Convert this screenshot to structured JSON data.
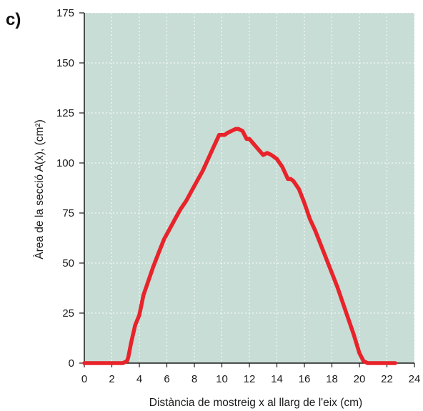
{
  "panel_label": "c)",
  "colors": {
    "plot_background": "#c7ddd5",
    "grid": "#ffffff",
    "axis": "#1a1a1a",
    "series": "#e8232a"
  },
  "chart_data": {
    "type": "line",
    "title": "",
    "xlabel": "Distància de mostreig x al llarg de l'eix (cm)",
    "ylabel": "Àrea de la secció A(x), (cm²)",
    "xlim": [
      0,
      24
    ],
    "ylim": [
      0,
      175
    ],
    "xticks": [
      "0",
      "2",
      "4",
      "6",
      "8",
      "10",
      "12",
      "14",
      "16",
      "18",
      "20",
      "22",
      "24"
    ],
    "yticks": [
      "0",
      "25",
      "50",
      "75",
      "100",
      "125",
      "150",
      "175"
    ],
    "grid": true,
    "grid_style": "dotted",
    "series": [
      {
        "x": [
          0,
          1,
          2,
          2.8,
          3.1,
          3.2,
          3.4,
          3.7,
          4.0,
          4.3,
          4.6,
          5.0,
          5.4,
          5.8,
          6.2,
          6.6,
          7.0,
          7.4,
          7.8,
          8.2,
          8.6,
          9.0,
          9.4,
          9.8,
          10.2,
          10.4,
          10.7,
          11.0,
          11.2,
          11.5,
          11.8,
          12.0,
          12.5,
          13.0,
          13.3,
          13.6,
          14.0,
          14.4,
          14.8,
          15.0,
          15.2,
          15.6,
          16.0,
          16.4,
          16.8,
          17.2,
          17.6,
          18.0,
          18.4,
          18.8,
          19.2,
          19.6,
          20.0,
          20.3,
          20.6,
          20.8,
          21.0,
          21.3,
          22.0,
          22.6
        ],
        "y": [
          0,
          0,
          0,
          0,
          1,
          3,
          10,
          19,
          24,
          34,
          40,
          48,
          55,
          62,
          67,
          72,
          77,
          81,
          86,
          91,
          96,
          102,
          108,
          114,
          114,
          115,
          116,
          117,
          117,
          116,
          112,
          112,
          108,
          104,
          105,
          104,
          102,
          98,
          92,
          92,
          91,
          87,
          80,
          72,
          66,
          59,
          52,
          45,
          38,
          30,
          22,
          14,
          5,
          1,
          0,
          0,
          0,
          0,
          0,
          0
        ]
      }
    ]
  }
}
